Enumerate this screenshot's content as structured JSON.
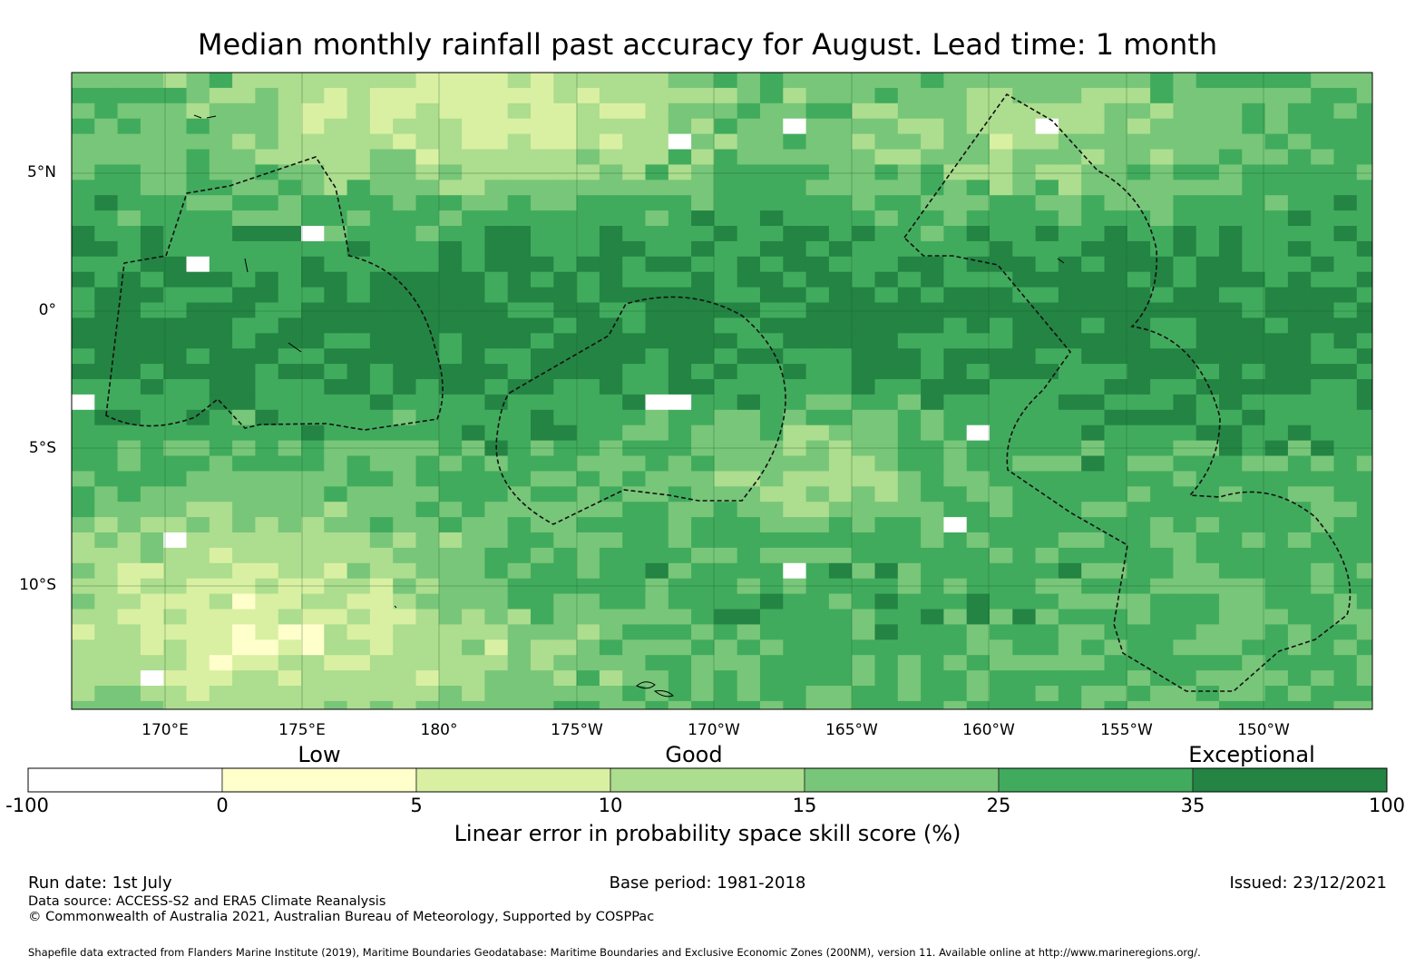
{
  "title": "Median monthly rainfall past accuracy for August. Lead time: 1 month",
  "latitude_labels": [
    "5°N",
    "0°",
    "5°S",
    "10°S"
  ],
  "longitude_labels": [
    "170°E",
    "175°E",
    "180°",
    "175°W",
    "170°W",
    "165°W",
    "160°W",
    "155°W",
    "150°W"
  ],
  "colorbar": {
    "category_labels": [
      "Low",
      "Good",
      "Exceptional"
    ],
    "tick_labels": [
      "-100",
      "0",
      "5",
      "10",
      "15",
      "25",
      "35",
      "100"
    ],
    "bin_colors": [
      "#ffffff",
      "#ffffcc",
      "#d9f0a3",
      "#addd8e",
      "#78c679",
      "#41ab5d",
      "#238443"
    ],
    "label": "Linear error in probability space skill score (%)"
  },
  "footer": {
    "run_date": "Run date: 1st July",
    "base_period": "Base period: 1981-2018",
    "issued": "Issued: 23/12/2021",
    "data_source": "Data source: ACCESS-S2 and ERA5 Climate Reanalysis",
    "copyright": "© Commonwealth of Australia 2021, Australian Bureau of Meteorology, Supported by COSPPac",
    "shapefile_note": "Shapefile data extracted from Flanders Marine Institute (2019), Maritime Boundaries Geodatabase: Maritime Boundaries and Exclusive Economic Zones (200NM), version 11. Available online at http://www.marineregions.org/."
  }
}
